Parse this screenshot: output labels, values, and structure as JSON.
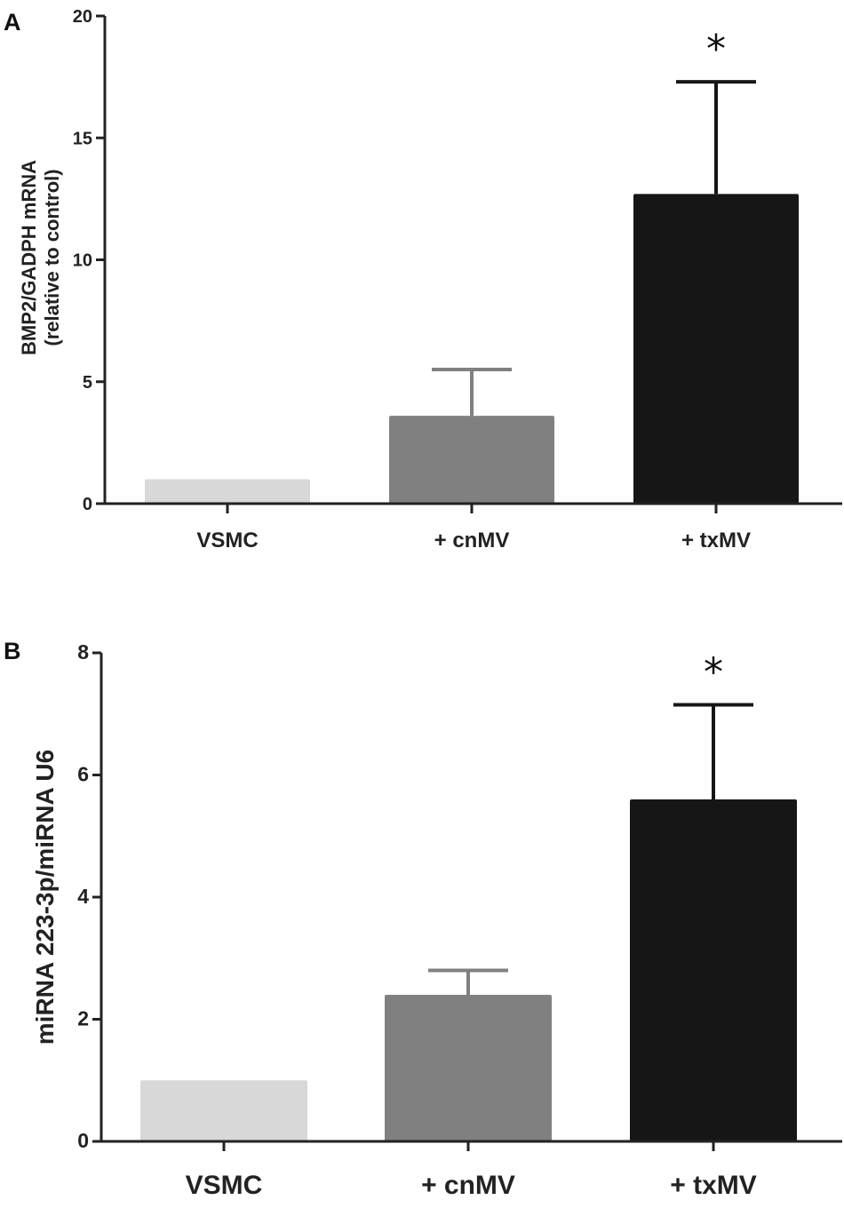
{
  "chart_data": [
    {
      "panel": "A",
      "type": "bar",
      "categories": [
        "VSMC",
        "+ cnMV",
        "+ txMV"
      ],
      "values": [
        1.0,
        3.6,
        12.7
      ],
      "errors": [
        0,
        1.9,
        4.6
      ],
      "colors": [
        "#d8d8d8",
        "#808080",
        "#161616"
      ],
      "ylabel": "BMP2/GADPH mRNA",
      "ylabel2": "(relative to control)",
      "ylim": [
        0,
        20
      ],
      "yticks": [
        "0",
        "5",
        "10",
        "15",
        "20"
      ],
      "significance": "*"
    },
    {
      "panel": "B",
      "type": "bar",
      "categories": [
        "VSMC",
        "+ cnMV",
        "+ txMV"
      ],
      "values": [
        1.0,
        2.4,
        5.6
      ],
      "errors": [
        0,
        0.4,
        1.55
      ],
      "colors": [
        "#d8d8d8",
        "#808080",
        "#161616"
      ],
      "ylabel": "miRNA 223-3p/miRNA U6",
      "ylim": [
        0,
        8
      ],
      "yticks": [
        "0",
        "2",
        "4",
        "6",
        "8"
      ],
      "significance": "*"
    }
  ]
}
